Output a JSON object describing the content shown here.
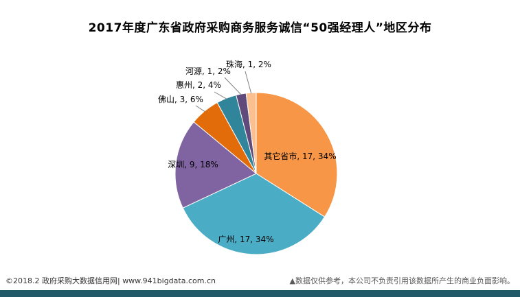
{
  "page": {
    "title": "2017年度广东省政府采购商务服务诚信“50强经理人”地区分布"
  },
  "chart_data": {
    "type": "pie",
    "title": "2017年度广东省政府采购商务服务诚信“50强经理人”地区分布",
    "categories": [
      "其它省市",
      "广州",
      "深圳",
      "佛山",
      "惠州",
      "河源",
      "珠海"
    ],
    "values": [
      17,
      17,
      9,
      3,
      2,
      1,
      1
    ],
    "percents": [
      34,
      34,
      18,
      6,
      4,
      2,
      2
    ],
    "total": 50,
    "colors": [
      "#F79646",
      "#4BACC6",
      "#8064A2",
      "#E36C0A",
      "#31859B",
      "#604A7B",
      "#FAC090"
    ],
    "label_format": "{category}, {value}, {percent}%",
    "start_angle_deg": 0,
    "direction": "clockwise",
    "legend": "none",
    "labels_visible": true
  },
  "footer": {
    "source": "©2018.2 政府采购大数据信用网| www.941bigdata.com.cn",
    "disclaimer": "▲数据仅供参考，本公司不负责引用该数据所产生的商业负面影响。"
  },
  "theme": {
    "background": "#FFFFFF",
    "bottom_bar_color": "#215968",
    "label_text_color": "#000000",
    "leader_line_color": "#7F7F7F"
  }
}
